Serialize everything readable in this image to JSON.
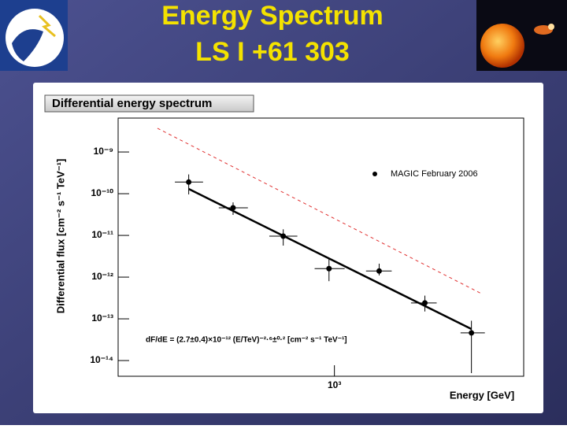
{
  "header": {
    "title": "Energy Spectrum",
    "subtitle": "LS I +61 303"
  },
  "chart_data": {
    "type": "scatter",
    "title": "Differential energy spectrum",
    "x_label": "Energy [GeV]",
    "y_label": "Differential flux [cm⁻² s⁻¹ TeV⁻¹]",
    "log_x": true,
    "log_y": true,
    "xlim": [
      100,
      7500
    ],
    "ylim": [
      4.2e-15,
      6.5e-09
    ],
    "xticks": [
      {
        "value": 1000,
        "label": "10³"
      }
    ],
    "yticks": [
      {
        "value": 1e-14,
        "label": "10⁻¹⁴"
      },
      {
        "value": 1e-13,
        "label": "10⁻¹³"
      },
      {
        "value": 1e-12,
        "label": "10⁻¹²"
      },
      {
        "value": 1e-11,
        "label": "10⁻¹¹"
      },
      {
        "value": 1e-10,
        "label": "10⁻¹⁰"
      },
      {
        "value": 1e-09,
        "label": "10⁻⁹"
      }
    ],
    "series": [
      {
        "name": "MAGIC February 2006",
        "color": "#000000",
        "x": [
          212,
          340,
          580,
          944,
          1610,
          2620,
          4300
        ],
        "values": [
          1.9e-10,
          4.6e-11,
          9.6e-12,
          1.6e-12,
          1.4e-12,
          2.4e-13,
          4.6e-14
        ],
        "y_low": [
          9.6e-11,
          3.1e-11,
          5.7e-12,
          8e-13,
          1.1e-12,
          1.5e-13,
          5e-15
        ],
        "y_high": [
          2.9e-10,
          6.2e-11,
          1.4e-11,
          2.8e-12,
          2.1e-12,
          3.6e-13,
          9e-14
        ],
        "x_low": [
          183,
          292,
          500,
          810,
          1400,
          2260,
          3830
        ],
        "x_high": [
          247,
          398,
          674,
          1115,
          1840,
          2970,
          4960
        ]
      }
    ],
    "fit": {
      "x": [
        212,
        4300
      ],
      "y": [
        1.3e-10,
        5.7e-14
      ],
      "color": "#000000"
    },
    "dashed_line": {
      "x": [
        152,
        4790
      ],
      "y": [
        3.7e-09,
        4e-13
      ],
      "color": "#e03030"
    },
    "annotation": "dF/dE = (2.7±0.4)×10⁻¹² (E/TeV)⁻²·⁶±⁰·² [cm⁻² s⁻¹ TeV⁻¹]"
  }
}
